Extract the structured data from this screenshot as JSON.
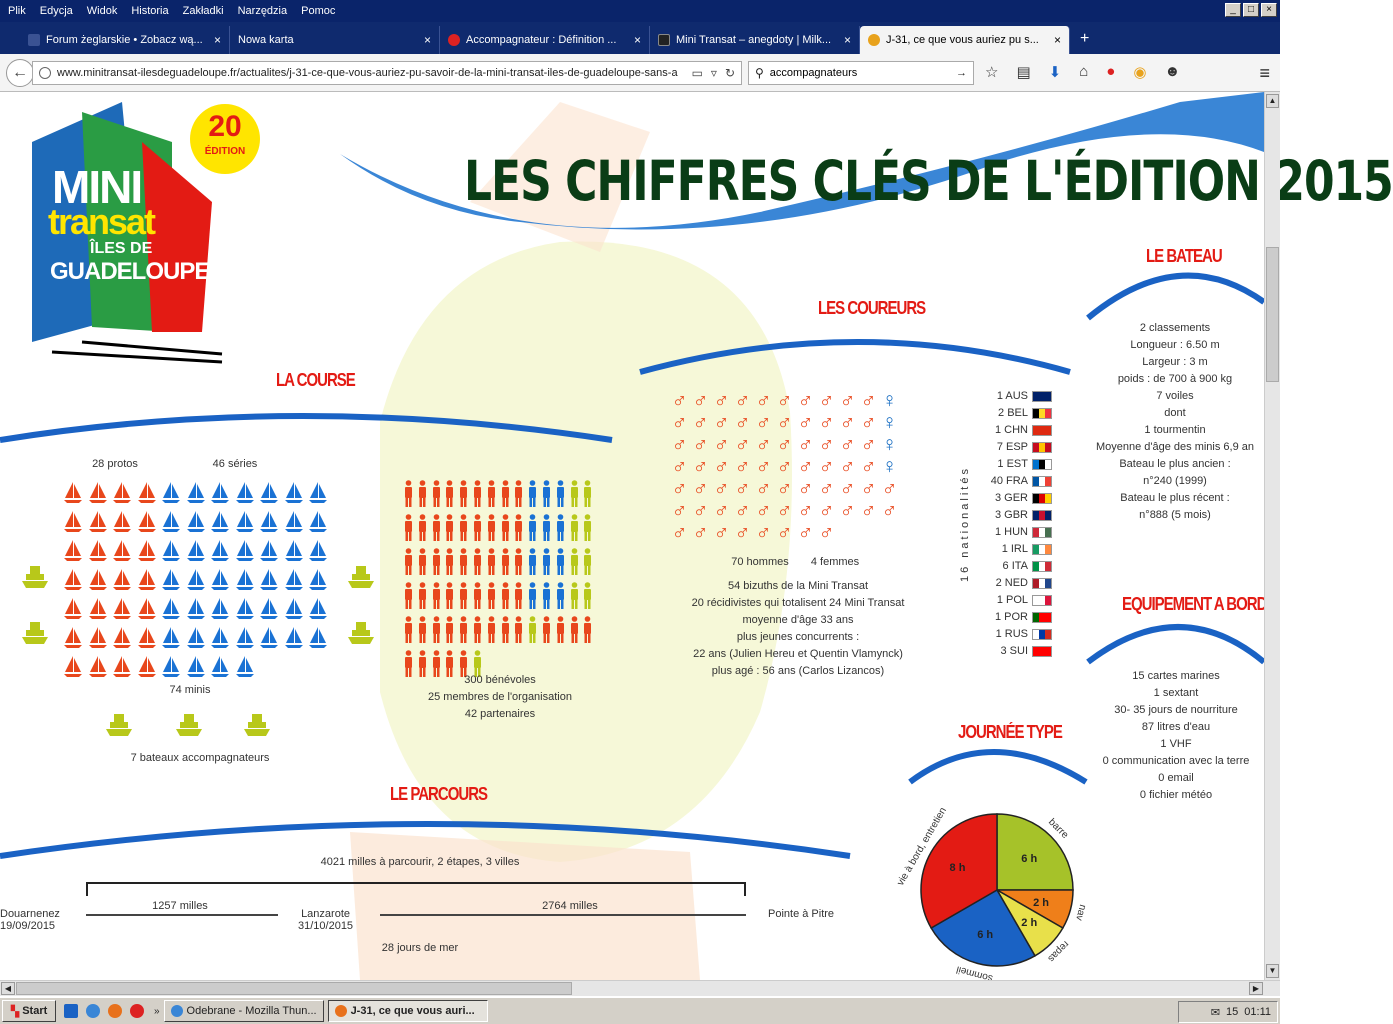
{
  "window": {
    "menu": [
      "Plik",
      "Edycja",
      "Widok",
      "Historia",
      "Zakładki",
      "Narzędzia",
      "Pomoc"
    ]
  },
  "tabs": [
    {
      "label": "Forum żeglarskie • Zobacz wą...",
      "icon": "sailboat-icon",
      "color": "#3a5293"
    },
    {
      "label": "Nowa karta",
      "icon": "blank-icon",
      "color": "#0f2a6e"
    },
    {
      "label": "Accompagnateur : Définition ...",
      "icon": "larousse-icon",
      "color": "#d22"
    },
    {
      "label": "Mini Transat – anegdoty | Milk...",
      "icon": "blog-icon",
      "color": "#222"
    },
    {
      "label": "J-31, ce que vous auriez pu s...",
      "icon": "minitransat-icon",
      "color": "#e8a21c"
    }
  ],
  "url": "www.minitransat-ilesdeguadeloupe.fr/actualites/j-31-ce-que-vous-auriez-pu-savoir-de-la-mini-transat-iles-de-guadeloupe-sans-a",
  "search_value": "accompagnateurs",
  "logo": {
    "badge_num": "20",
    "badge_sub": "ÉDITION",
    "mini": "MINI",
    "transat": "transat",
    "iles": "ÎLES DE",
    "guadeloupe": "GUADELOUPE"
  },
  "headline": "LES CHIFFRES CLÉS DE L'ÉDITION 2015",
  "course": {
    "title": "LA COURSE",
    "protos": "28 protos",
    "series": "46 séries",
    "protos_count": 28,
    "series_count": 46,
    "total": "74 minis",
    "accomp": "7 bateaux accompagnateurs",
    "accomp_count": 7,
    "benevoles_count": 300
  },
  "volunteers": {
    "line1": "300 bénévoles",
    "line2": "25 membres de l'organisation",
    "line3": "42 partenaires"
  },
  "coureurs": {
    "title": "LES COUREURS",
    "men": "70 hommes",
    "women": "4 femmes",
    "men_count": 70,
    "women_count": 4,
    "lines": [
      "54 bizuths de la Mini Transat",
      "20 récidivistes qui totalisent 24 Mini Transat",
      "moyenne d'âge 33 ans",
      "plus jeunes concurrents :",
      "22 ans (Julien Hereu et Quentin Vlamynck)",
      "plus agé : 56 ans (Carlos Lizancos)"
    ]
  },
  "nationalites": {
    "label": "16 nationalités",
    "items": [
      {
        "t": "1 AUS",
        "c": [
          "#012169",
          "#012169",
          "#012169"
        ]
      },
      {
        "t": "2 BEL",
        "c": [
          "#000000",
          "#fdda24",
          "#ef3340"
        ]
      },
      {
        "t": "1 CHN",
        "c": [
          "#de2910",
          "#de2910",
          "#de2910"
        ]
      },
      {
        "t": "7 ESP",
        "c": [
          "#c60b1e",
          "#ffc400",
          "#c60b1e"
        ]
      },
      {
        "t": "1 EST",
        "c": [
          "#0072ce",
          "#000000",
          "#ffffff"
        ]
      },
      {
        "t": "40 FRA",
        "c": [
          "#0055a4",
          "#ffffff",
          "#ef4135"
        ]
      },
      {
        "t": "3 GER",
        "c": [
          "#000000",
          "#dd0000",
          "#ffce00"
        ]
      },
      {
        "t": "3 GBR",
        "c": [
          "#012169",
          "#c8102e",
          "#012169"
        ]
      },
      {
        "t": "1 HUN",
        "c": [
          "#ce2939",
          "#ffffff",
          "#477050"
        ]
      },
      {
        "t": "1 IRL",
        "c": [
          "#169b62",
          "#ffffff",
          "#ff883e"
        ]
      },
      {
        "t": "6 ITA",
        "c": [
          "#009246",
          "#ffffff",
          "#ce2b37"
        ]
      },
      {
        "t": "2 NED",
        "c": [
          "#ae1c28",
          "#ffffff",
          "#21468b"
        ]
      },
      {
        "t": "1 POL",
        "c": [
          "#ffffff",
          "#ffffff",
          "#dc143c"
        ]
      },
      {
        "t": "1 POR",
        "c": [
          "#006600",
          "#ff0000",
          "#ff0000"
        ]
      },
      {
        "t": "1 RUS",
        "c": [
          "#ffffff",
          "#0039a6",
          "#d52b1e"
        ]
      },
      {
        "t": "3 SUI",
        "c": [
          "#ff0000",
          "#ff0000",
          "#ff0000"
        ]
      }
    ]
  },
  "bateau": {
    "title": "LE BATEAU",
    "lines": [
      "2 classements",
      "Longueur : 6.50 m",
      "Largeur : 3 m",
      "poids : de 700 à 900 kg",
      "7 voiles",
      "dont",
      "1 tourmentin",
      "Moyenne d'âge des minis 6,9 an",
      "Bateau le plus ancien :",
      "n°240 (1999)",
      "Bateau le plus récent :",
      "n°888 (5 mois)"
    ]
  },
  "equipement": {
    "title": "EQUIPEMENT A BORD",
    "lines": [
      "15 cartes marines",
      "1 sextant",
      "30- 35 jours de nourriture",
      "87 litres d'eau",
      "1 VHF",
      "0 communication avec la terre",
      "0 email",
      "0 fichier météo"
    ]
  },
  "journee": {
    "title": "JOURNÉE TYPE",
    "slices": [
      {
        "label": "6 h",
        "hours": 6,
        "color": "#a6c229",
        "name": "barre"
      },
      {
        "label": "2 h",
        "hours": 2,
        "color": "#ef7f1a",
        "name": "nav"
      },
      {
        "label": "2 h",
        "hours": 2,
        "color": "#e8e04a",
        "name": "repas"
      },
      {
        "label": "6 h",
        "hours": 6,
        "color": "#1a62c4",
        "name": "sommeil"
      },
      {
        "label": "8 h",
        "hours": 8,
        "color": "#e31b14",
        "name": "vie à bord, entretien"
      }
    ]
  },
  "parcours": {
    "title": "LE PARCOURS",
    "summary": "4021 milles à parcourir, 2 étapes, 3 villes",
    "leg1": "1257 milles",
    "leg2": "2764 milles",
    "start_city": "Douarnenez",
    "start_date": "19/09/2015",
    "mid_city": "Lanzarote",
    "mid_date": "31/10/2015",
    "end_city": "Pointe à Pitre",
    "sea_days": "28 jours de mer"
  },
  "taskbar": {
    "start": "Start",
    "tasks": [
      "Odebrane - Mozilla Thun...",
      "J-31, ce que vous auri..."
    ],
    "tray_num": "15",
    "clock": "01:11"
  }
}
